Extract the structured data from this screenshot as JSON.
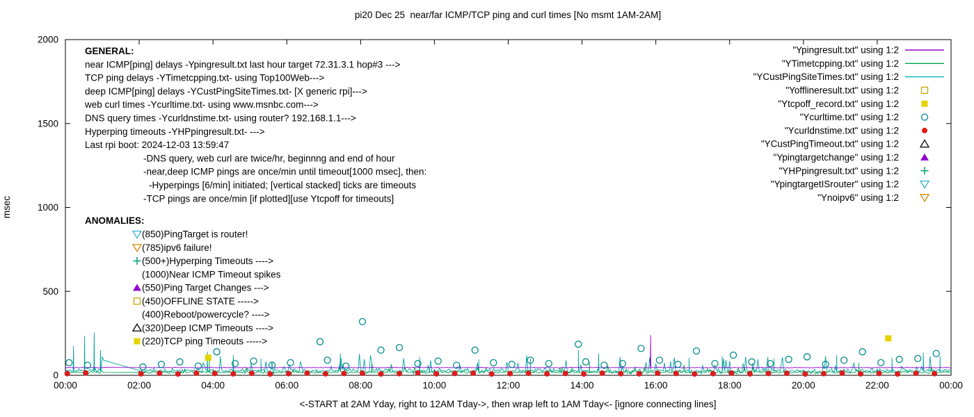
{
  "title": "pi20 Dec 25  near/far ICMP/TCP ping and curl times [No msmt 1AM-2AM]",
  "chart_data": {
    "type": "line",
    "title": "pi20 Dec 25  near/far ICMP/TCP ping and curl times [No msmt 1AM-2AM]",
    "ylabel": "msec",
    "xlabel": "<-START at 2AM Yday, right to 12AM Tday->, then wrap left to 1AM Tday<- [ignore connecting lines]",
    "ylim": [
      0,
      2000
    ],
    "yticks": [
      0,
      500,
      1000,
      1500,
      2000
    ],
    "x_hours_range": [
      0,
      24
    ],
    "xtick_labels": [
      "00:00",
      "02:00",
      "04:00",
      "06:00",
      "08:00",
      "10:00",
      "12:00",
      "14:00",
      "16:00",
      "18:00",
      "20:00",
      "22:00",
      "00:00"
    ],
    "grid": false,
    "legend_position": "top-right",
    "no_measurement_gap_hours": [
      1.05,
      2.0
    ],
    "legend": [
      {
        "label": "\"Ypingresult.txt\" using 1:2",
        "symbol": "line",
        "color": "#9400d3"
      },
      {
        "label": "\"YTimetcpping.txt\" using 1:2",
        "symbol": "line",
        "color": "#00a550"
      },
      {
        "label": "\"YCustPingSiteTimes.txt\" using 1:2",
        "symbol": "line",
        "color": "#00b2b2"
      },
      {
        "label": "\"Yofflineresult.txt\" using 1:2",
        "symbol": "square-open",
        "color": "#c8a800"
      },
      {
        "label": "\"Ytcpoff_record.txt\" using 1:2",
        "symbol": "square-filled",
        "color": "#e3d400"
      },
      {
        "label": "\"Ycurltime.txt\" using 1:2",
        "symbol": "circle-open",
        "color": "#008b8b"
      },
      {
        "label": "\"Ycurldnstime.txt\" using 1:2",
        "symbol": "circle-filled",
        "color": "#dd1c1c"
      },
      {
        "label": "\"YCustPingTimeout.txt\" using 1:2",
        "symbol": "triangle-up-open",
        "color": "#000000"
      },
      {
        "label": "\"Ypingtargetchange\" using 1:2",
        "symbol": "triangle-up-filled",
        "color": "#9400d3"
      },
      {
        "label": "\"YHPpingresult.txt\" using 1:2",
        "symbol": "plus",
        "color": "#00a070"
      },
      {
        "label": "\"YpingtargetISrouter\" using 1:2",
        "symbol": "triangle-down-open",
        "color": "#33b5cc"
      },
      {
        "label": "\"Ynoipv6\" using 1:2",
        "symbol": "triangle-down-open",
        "color": "#d88a00"
      }
    ],
    "noise_series": [
      {
        "name": "YCustPingSiteTimes.txt",
        "color": "#00a0a0",
        "baseline": 26,
        "jitter": 20,
        "spike_prob": 0.1,
        "spike_max": 90,
        "seed": 7,
        "spikes": [
          [
            0.22,
            175
          ],
          [
            0.52,
            235
          ],
          [
            0.78,
            255
          ],
          [
            0.95,
            150
          ],
          [
            3.85,
            140
          ],
          [
            4.55,
            120
          ],
          [
            5.3,
            100
          ],
          [
            7.45,
            130
          ],
          [
            9.6,
            110
          ],
          [
            11.2,
            95
          ],
          [
            12.6,
            100
          ],
          [
            13.9,
            150
          ],
          [
            14.45,
            130
          ],
          [
            16.9,
            105
          ],
          [
            17.8,
            115
          ],
          [
            19.2,
            100
          ],
          [
            20.9,
            120
          ],
          [
            22.4,
            105
          ],
          [
            23.25,
            135
          ],
          [
            23.7,
            115
          ]
        ]
      },
      {
        "name": "YTimetcpping.txt",
        "color": "#00a550",
        "baseline": 18,
        "jitter": 10,
        "spike_prob": 0.05,
        "spike_max": 40,
        "seed": 13,
        "spikes": [
          [
            3.9,
            90
          ],
          [
            8.3,
            70
          ],
          [
            14.2,
            80
          ],
          [
            21.5,
            75
          ]
        ]
      },
      {
        "name": "Ypingresult.txt",
        "color": "#9400d3",
        "baseline": 46,
        "jitter": 3,
        "spike_prob": 0.0,
        "spike_max": 0,
        "seed": 21,
        "spikes": [
          [
            15.86,
            240
          ]
        ]
      }
    ],
    "scatter_series": [
      {
        "name": "Ycurltime.txt",
        "marker": "circle-open",
        "color": "#008b8b",
        "points": [
          [
            0.1,
            75
          ],
          [
            0.6,
            60
          ],
          [
            2.1,
            50
          ],
          [
            2.6,
            65
          ],
          [
            3.1,
            80
          ],
          [
            3.6,
            55
          ],
          [
            4.1,
            140
          ],
          [
            4.6,
            70
          ],
          [
            5.1,
            85
          ],
          [
            5.6,
            60
          ],
          [
            6.1,
            75
          ],
          [
            6.9,
            200
          ],
          [
            7.1,
            90
          ],
          [
            7.6,
            55
          ],
          [
            8.05,
            320
          ],
          [
            8.55,
            150
          ],
          [
            9.05,
            165
          ],
          [
            9.55,
            70
          ],
          [
            10.1,
            85
          ],
          [
            10.6,
            60
          ],
          [
            11.1,
            150
          ],
          [
            11.6,
            75
          ],
          [
            12.1,
            65
          ],
          [
            12.6,
            90
          ],
          [
            13.1,
            70
          ],
          [
            13.9,
            185
          ],
          [
            14.1,
            80
          ],
          [
            14.6,
            60
          ],
          [
            15.1,
            70
          ],
          [
            15.6,
            160
          ],
          [
            16.1,
            90
          ],
          [
            16.6,
            65
          ],
          [
            17.1,
            145
          ],
          [
            17.6,
            70
          ],
          [
            18.1,
            120
          ],
          [
            18.6,
            80
          ],
          [
            19.1,
            70
          ],
          [
            19.6,
            95
          ],
          [
            20.1,
            110
          ],
          [
            20.6,
            65
          ],
          [
            21.1,
            90
          ],
          [
            21.6,
            140
          ],
          [
            22.1,
            75
          ],
          [
            22.6,
            95
          ],
          [
            23.1,
            100
          ],
          [
            23.6,
            130
          ]
        ]
      },
      {
        "name": "Ycurldnstime.txt",
        "marker": "circle-filled",
        "color": "#dd1c1c",
        "points": [
          [
            0.05,
            10
          ],
          [
            0.55,
            14
          ],
          [
            2.05,
            9
          ],
          [
            2.55,
            12
          ],
          [
            3.05,
            8
          ],
          [
            3.55,
            13
          ],
          [
            4.05,
            11
          ],
          [
            4.55,
            9
          ],
          [
            5.05,
            12
          ],
          [
            5.55,
            8
          ],
          [
            6.05,
            10
          ],
          [
            6.55,
            13
          ],
          [
            7.05,
            9
          ],
          [
            7.55,
            11
          ],
          [
            8.05,
            12
          ],
          [
            8.55,
            8
          ],
          [
            9.05,
            10
          ],
          [
            9.55,
            14
          ],
          [
            10.05,
            9
          ],
          [
            10.55,
            11
          ],
          [
            11.05,
            13
          ],
          [
            11.55,
            8
          ],
          [
            12.05,
            10
          ],
          [
            12.55,
            12
          ],
          [
            13.05,
            9
          ],
          [
            13.55,
            11
          ],
          [
            14.05,
            8
          ],
          [
            14.55,
            13
          ],
          [
            15.05,
            10
          ],
          [
            15.55,
            9
          ],
          [
            16.05,
            12
          ],
          [
            16.55,
            11
          ],
          [
            17.05,
            8
          ],
          [
            17.55,
            10
          ],
          [
            18.05,
            13
          ],
          [
            18.55,
            9
          ],
          [
            19.05,
            11
          ],
          [
            19.55,
            12
          ],
          [
            20.05,
            8
          ],
          [
            20.55,
            10
          ],
          [
            21.05,
            13
          ],
          [
            21.55,
            9
          ],
          [
            22.05,
            11
          ],
          [
            22.55,
            8
          ],
          [
            23.05,
            12
          ],
          [
            23.55,
            10
          ]
        ]
      },
      {
        "name": "Ytcpoff_record.txt",
        "marker": "square-filled",
        "color": "#e3d400",
        "points": [
          [
            3.87,
            105
          ],
          [
            22.3,
            220
          ]
        ]
      }
    ]
  },
  "annotations": {
    "general_header": "GENERAL:",
    "general_lines": [
      {
        "text": "near ICMP[ping] delays -Ypingresult.txt last hour target 72.31.3.1 hop#3 --->",
        "indent": 0
      },
      {
        "text": "TCP ping delays -YTimetcpping.txt- using Top100Web--->",
        "indent": 0
      },
      {
        "text": "deep ICMP[ping] delays -YCustPingSiteTimes.txt- [X generic rpi]--->",
        "indent": 0
      },
      {
        "text": "web curl times -Ycurltime.txt- using www.msnbc.com--->",
        "indent": 0
      },
      {
        "text": "DNS query times -Ycurldnstime.txt- using router? 192.168.1.1--->",
        "indent": 0
      },
      {
        "text": "Hyperping timeouts -YHPpingresult.txt- --->",
        "indent": 0
      },
      {
        "text": "Last rpi boot: 2024-12-03 13:59:47",
        "indent": 0
      },
      {
        "text": "-DNS query, web curl are twice/hr, beginnng and end of hour",
        "indent": 84
      },
      {
        "text": "-near,deep ICMP pings are once/min until timeout[1000 msec], then:",
        "indent": 84
      },
      {
        "text": "-Hyperpings [6/min] initiated; [vertical stacked] ticks are timeouts",
        "indent": 92
      },
      {
        "text": "-TCP pings are once/min [if plotted][use Ytcpoff for timeouts]",
        "indent": 84
      }
    ],
    "anomalies_header": "ANOMALIES:",
    "anomalies": [
      {
        "marker": "triangle-down-open",
        "color": "#33b5cc",
        "text": "(850)PingTarget is router!"
      },
      {
        "marker": "triangle-down-open",
        "color": "#d88a00",
        "text": "(785)ipv6 failure!"
      },
      {
        "marker": "plus",
        "color": "#00a070",
        "text": "(500+)Hyperping Timeouts ---->"
      },
      {
        "marker": "none",
        "color": "",
        "text": "(1000)Near ICMP Timeout spikes"
      },
      {
        "marker": "triangle-up-filled",
        "color": "#9400d3",
        "text": "(550)Ping Target Changes --->"
      },
      {
        "marker": "square-open",
        "color": "#c8a800",
        "text": "(450)OFFLINE STATE ----->"
      },
      {
        "marker": "none",
        "color": "",
        "text": "(400)Reboot/powercycle? ---->"
      },
      {
        "marker": "triangle-up-open",
        "color": "#000000",
        "text": "(320)Deep ICMP Timeouts ---->"
      },
      {
        "marker": "square-filled",
        "color": "#e3d400",
        "text": "(220)TCP ping Timeouts ----->"
      }
    ]
  }
}
